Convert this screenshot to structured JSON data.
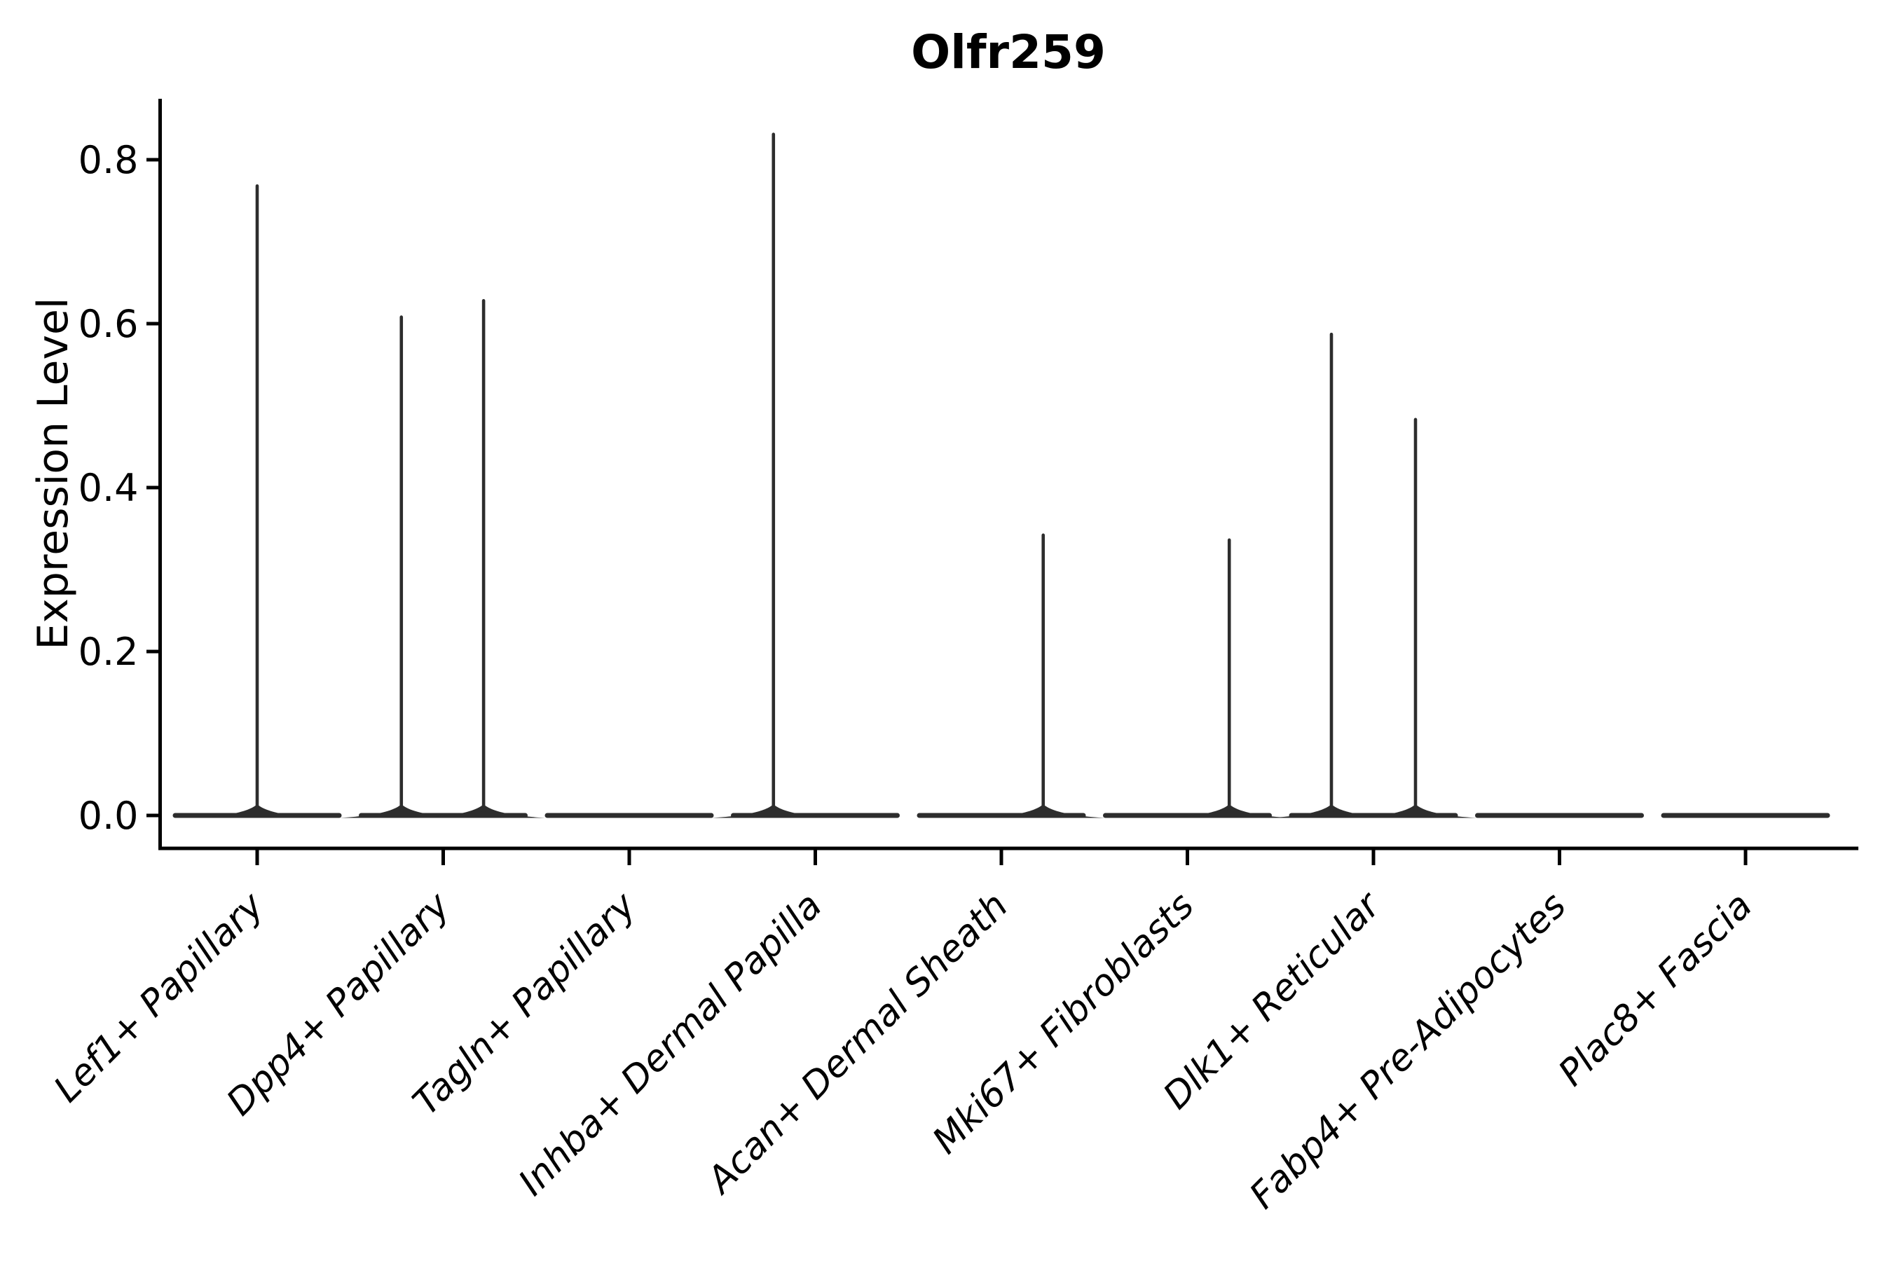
{
  "chart_data": {
    "type": "violin",
    "title": "Olfr259",
    "xlabel": "",
    "ylabel": "Expression Level",
    "ytick_labels": [
      "0.0",
      "0.2",
      "0.4",
      "0.6",
      "0.8"
    ],
    "ytick_values": [
      0.0,
      0.2,
      0.4,
      0.6,
      0.8
    ],
    "ylim": [
      -0.04,
      0.874
    ],
    "grid": false,
    "legend": null,
    "x_label_rotation_deg": 45,
    "x_label_fontstyle": "italic",
    "categories": [
      "Lef1+ Papillary",
      "Dpp4+ Papillary",
      "Tagln+ Papillary",
      "Inhba+ Dermal Papilla",
      "Acan+ Dermal Sheath",
      "Mki67+ Fibroblasts",
      "Dlk1+ Reticular",
      "Fabp4+ Pre-Adipocytes",
      "Plac8+ Fascia"
    ],
    "violins": [
      {
        "category": "Lef1+ Papillary",
        "spikes": [
          {
            "offset": 0.0,
            "value": 0.77
          }
        ]
      },
      {
        "category": "Dpp4+ Papillary",
        "spikes": [
          {
            "offset": -0.225,
            "value": 0.61
          },
          {
            "offset": 0.217,
            "value": 0.63
          }
        ]
      },
      {
        "category": "Tagln+ Papillary",
        "spikes": []
      },
      {
        "category": "Inhba+ Dermal Papilla",
        "spikes": [
          {
            "offset": -0.225,
            "value": 0.833
          }
        ]
      },
      {
        "category": "Acan+ Dermal Sheath",
        "spikes": [
          {
            "offset": 0.225,
            "value": 0.344
          }
        ]
      },
      {
        "category": "Mki67+ Fibroblasts",
        "spikes": [
          {
            "offset": 0.225,
            "value": 0.338
          }
        ]
      },
      {
        "category": "Dlk1+ Reticular",
        "spikes": [
          {
            "offset": -0.226,
            "value": 0.589
          },
          {
            "offset": 0.226,
            "value": 0.485
          }
        ]
      },
      {
        "category": "Fabp4+ Pre-Adipocytes",
        "spikes": []
      },
      {
        "category": "Plac8+ Fascia",
        "spikes": []
      }
    ],
    "style": {
      "violin_color": "#2d2d2d",
      "axis_color": "#000000",
      "text_color": "#000000",
      "background": "#ffffff"
    }
  }
}
